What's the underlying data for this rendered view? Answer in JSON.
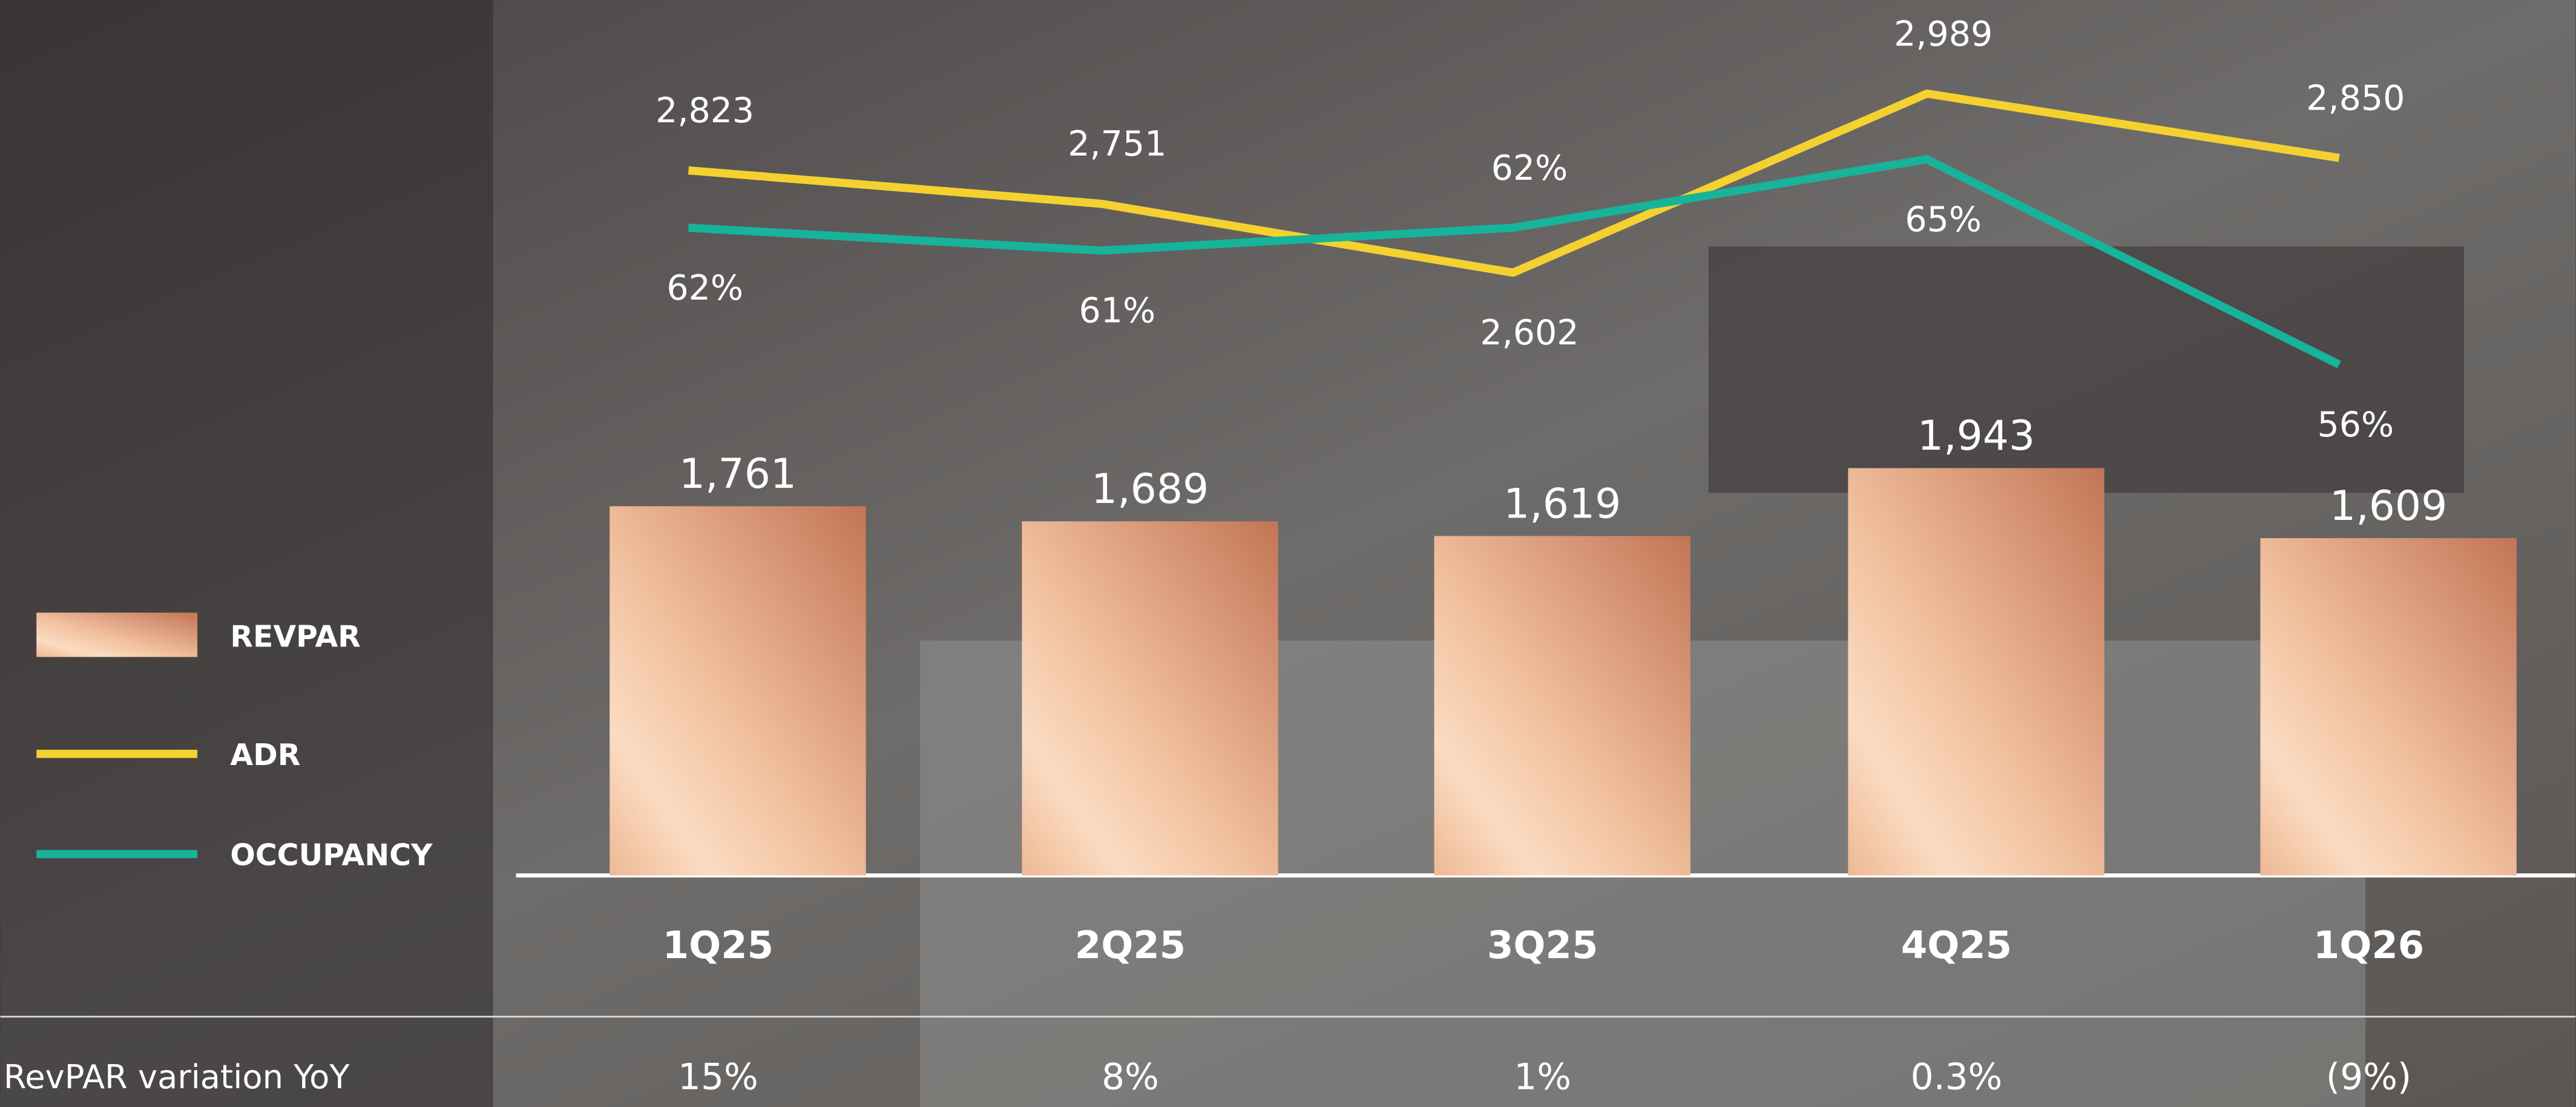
{
  "chart_data": {
    "type": "combo",
    "categories": [
      "1Q25",
      "2Q25",
      "3Q25",
      "4Q25",
      "1Q26"
    ],
    "series": [
      {
        "name": "REVPAR",
        "type": "bar",
        "color": "#e2a07e",
        "values": [
          1761,
          1689,
          1619,
          1943,
          1609
        ],
        "value_labels": [
          "1,761",
          "1,689",
          "1,619",
          "1,943",
          "1,609"
        ]
      },
      {
        "name": "ADR",
        "type": "line",
        "color": "#f5d130",
        "values": [
          2823,
          2751,
          2602,
          2989,
          2850
        ],
        "value_labels": [
          "2,823",
          "2,751",
          "2,602",
          "2,989",
          "2,850"
        ]
      },
      {
        "name": "OCCUPANCY",
        "type": "line",
        "color": "#17b39b",
        "values": [
          62,
          61,
          62,
          65,
          56
        ],
        "value_labels": [
          "62%",
          "61%",
          "62%",
          "65%",
          "56%"
        ]
      }
    ],
    "table": {
      "label": "RevPAR variation YoY",
      "values": [
        15,
        8,
        1,
        0.3,
        -9
      ],
      "value_labels": [
        "15%",
        "8%",
        "1%",
        "0.3%",
        "(9%)"
      ]
    }
  }
}
